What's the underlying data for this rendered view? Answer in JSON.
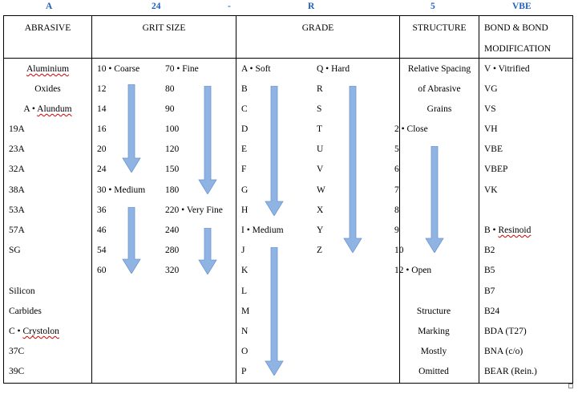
{
  "top_codes": [
    "A",
    "24",
    "-",
    "R",
    "5",
    "VBE"
  ],
  "headers": {
    "abrasive": "ABRASIVE",
    "grit": "GRIT SIZE",
    "grade": "GRADE",
    "structure": "STRUCTURE",
    "bond_l1": "BOND & BOND",
    "bond_l2": "MODIFICATION"
  },
  "abrasive": {
    "alu_l1": "Aluminium",
    "alu_l2": "Oxides",
    "alu_l3_prefix": "A • ",
    "alu_l3_name": "Alundum",
    "alu_codes": [
      "19A",
      "23A",
      "32A",
      "38A",
      "53A",
      "57A",
      "SG"
    ],
    "sic_l1": "Silicon",
    "sic_l2": "Carbides",
    "sic_l3_prefix": "C • ",
    "sic_l3_name": "Crystolon",
    "sic_codes": [
      "37C",
      "39C"
    ]
  },
  "grit": {
    "col1": [
      "10 • Coarse",
      "12",
      "14",
      "16",
      "20",
      "24",
      "30 • Medium",
      "36",
      "46",
      "54",
      "60"
    ],
    "col2": [
      "70 • Fine",
      "80",
      "90",
      "100",
      "120",
      "150",
      "180",
      "220 • Very Fine",
      "240",
      "280",
      "320"
    ]
  },
  "grade": {
    "col1": [
      "A • Soft",
      "B",
      "C",
      "D",
      "E",
      "F",
      "G",
      "H",
      "I • Medium",
      "J",
      "K",
      "L",
      "M",
      "N",
      "O",
      "P"
    ],
    "col2": [
      "Q • Hard",
      "R",
      "S",
      "T",
      "U",
      "V",
      "W",
      "X",
      "Y",
      "Z"
    ]
  },
  "structure": {
    "intro": [
      "Relative Spacing",
      "of Abrasive",
      "Grains"
    ],
    "values": [
      "2 • Close",
      "5",
      "6",
      "7",
      "8",
      "9",
      "10",
      "12 • Open"
    ],
    "note": [
      "Structure",
      "Marking",
      "Mostly",
      "Omitted"
    ]
  },
  "bond": {
    "top": [
      "V • Vitrified",
      "VG",
      "VS",
      "VH",
      "VBE",
      "VBEP",
      "VK"
    ],
    "resinoid_prefix": "B • ",
    "resinoid_name": "Resinoid",
    "bottom": [
      "B2",
      "B5",
      "B7",
      "B24",
      "BDA (T27)",
      "BNA (c/o)",
      "BEAR (Rein.)"
    ]
  },
  "colors": {
    "header_code": "#1f5fbf",
    "arrow": "#8fb3e3",
    "spell_underline": "#d00000"
  },
  "icons": [
    "down-arrow-icon"
  ]
}
